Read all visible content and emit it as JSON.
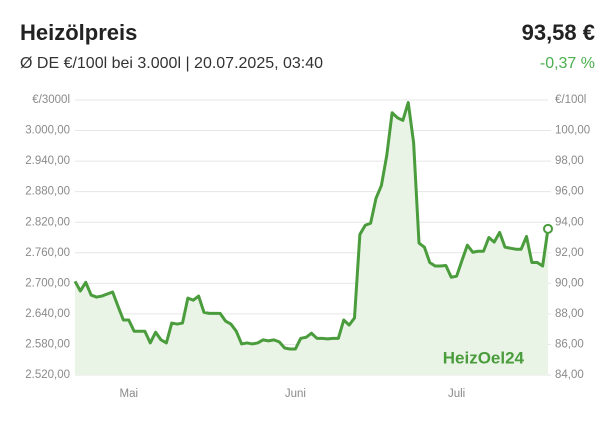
{
  "header": {
    "title": "Heizölpreis",
    "price": "93,58 €",
    "subtitle": "Ø DE €/100l bei 3.000l | 20.07.2025, 03:40",
    "change": "-0,37 %"
  },
  "chart_data": {
    "type": "line",
    "y_unit": "€/3000l",
    "y2_unit": "€/100l",
    "watermark": "HeizOel24",
    "categories": [
      null,
      null,
      null,
      null,
      null,
      null,
      null,
      null,
      null,
      null,
      "Mai",
      null,
      null,
      null,
      null,
      null,
      null,
      null,
      null,
      null,
      null,
      null,
      null,
      null,
      null,
      null,
      null,
      null,
      null,
      null,
      null,
      null,
      null,
      null,
      null,
      null,
      null,
      null,
      null,
      null,
      null,
      "Juni",
      null,
      null,
      null,
      null,
      null,
      null,
      null,
      null,
      null,
      null,
      null,
      null,
      null,
      null,
      null,
      null,
      null,
      null,
      null,
      null,
      null,
      null,
      null,
      null,
      null,
      null,
      null,
      null,
      null,
      "Juli",
      null,
      null,
      null,
      null,
      null,
      null,
      null,
      null,
      null,
      null,
      null,
      null,
      null,
      null,
      null,
      null,
      null
    ],
    "series": [
      {
        "color": "#4a9c3d",
        "values": [
          2704,
          2685,
          2702,
          2677,
          2673,
          2675,
          2679,
          2683,
          2655,
          2628,
          2628,
          2606,
          2606,
          2606,
          2583,
          2604,
          2589,
          2583,
          2622,
          2620,
          2622,
          2671,
          2667,
          2675,
          2643,
          2641,
          2641,
          2641,
          2626,
          2620,
          2606,
          2581,
          2583,
          2581,
          2583,
          2589,
          2587,
          2589,
          2585,
          2573,
          2571,
          2571,
          2592,
          2594,
          2602,
          2592,
          2592,
          2591,
          2592,
          2592,
          2628,
          2618,
          2632,
          2796,
          2814,
          2818,
          2867,
          2892,
          2951,
          3035,
          3025,
          3020,
          3055,
          2976,
          2779,
          2771,
          2741,
          2734,
          2734,
          2735,
          2712,
          2714,
          2745,
          2775,
          2761,
          2763,
          2763,
          2790,
          2781,
          2800,
          2771,
          2769,
          2767,
          2767,
          2792,
          2741,
          2741,
          2734,
          2807
        ]
      }
    ],
    "ylim": [
      2520,
      3060
    ],
    "yticks": [
      {
        "value": 2520,
        "label": "2.520,00"
      },
      {
        "value": 2580,
        "label": "2.580,00"
      },
      {
        "value": 2640,
        "label": "2.640,00"
      },
      {
        "value": 2700,
        "label": "2.700,00"
      },
      {
        "value": 2760,
        "label": "2.760,00"
      },
      {
        "value": 2820,
        "label": "2.820,00"
      },
      {
        "value": 2880,
        "label": "2.880,00"
      },
      {
        "value": 2940,
        "label": "2.940,00"
      },
      {
        "value": 3000,
        "label": "3.000,00"
      }
    ],
    "y2lim": [
      84,
      102
    ],
    "y2ticks": [
      {
        "value": 84,
        "label": "84,00"
      },
      {
        "value": 86,
        "label": "86,00"
      },
      {
        "value": 88,
        "label": "88,00"
      },
      {
        "value": 90,
        "label": "90,00"
      },
      {
        "value": 92,
        "label": "92,00"
      },
      {
        "value": 94,
        "label": "94,00"
      },
      {
        "value": 96,
        "label": "96,00"
      },
      {
        "value": 98,
        "label": "98,00"
      },
      {
        "value": 100,
        "label": "100,00"
      }
    ],
    "grid": true,
    "area_color": "#e9f4e6",
    "watermark_color": "#4a9c3d"
  }
}
